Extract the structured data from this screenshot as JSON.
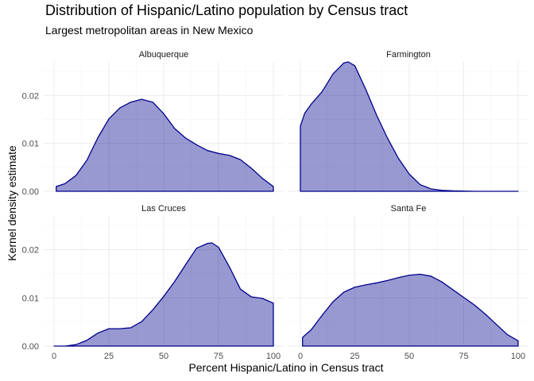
{
  "title": "Distribution of Hispanic/Latino population by Census tract",
  "subtitle": "Largest metropolitan areas in New Mexico",
  "chart_data": {
    "type": "area",
    "chart_kind": "faceted kernel density",
    "title": "Distribution of Hispanic/Latino population by Census tract",
    "subtitle": "Largest metropolitan areas in New Mexico",
    "xlabel": "Percent Hispanic/Latino in Census tract",
    "ylabel": "Kernel density estimate",
    "xlim": [
      0,
      100
    ],
    "ylim": [
      0,
      0.027
    ],
    "x_ticks": [
      0,
      25,
      50,
      75,
      100
    ],
    "x_tick_labels": [
      "0",
      "25",
      "50",
      "75",
      "100"
    ],
    "y_ticks": [
      0,
      0.01,
      0.02
    ],
    "y_tick_labels": [
      "0.00",
      "0.01",
      "0.02"
    ],
    "grid": true,
    "fill_color": "#00008b",
    "fill_alpha": 0.4,
    "line_color": "#00008b",
    "facets": [
      {
        "name": "Albuquerque",
        "x": [
          1,
          5,
          10,
          15,
          20,
          25,
          30,
          35,
          40,
          45,
          50,
          55,
          60,
          65,
          70,
          75,
          80,
          85,
          90,
          95,
          100
        ],
        "y": [
          0.001,
          0.0016,
          0.0033,
          0.0065,
          0.0112,
          0.0151,
          0.0174,
          0.0186,
          0.0192,
          0.0186,
          0.0162,
          0.0131,
          0.0111,
          0.0097,
          0.0085,
          0.0079,
          0.0075,
          0.0066,
          0.0048,
          0.0027,
          0.001
        ]
      },
      {
        "name": "Farmington",
        "x": [
          0,
          2,
          5,
          10,
          15,
          20,
          22,
          25,
          30,
          35,
          40,
          45,
          50,
          55,
          60,
          65,
          70,
          80,
          90,
          100
        ],
        "y": [
          0.0136,
          0.0163,
          0.0182,
          0.0208,
          0.0245,
          0.0268,
          0.027,
          0.0262,
          0.0213,
          0.0159,
          0.0111,
          0.0069,
          0.0036,
          0.0014,
          0.0005,
          0.0002,
          0.0001,
          0.0,
          0.0,
          0.0
        ]
      },
      {
        "name": "Las Cruces",
        "x": [
          0,
          5,
          10,
          15,
          20,
          25,
          30,
          35,
          40,
          45,
          50,
          55,
          60,
          65,
          70,
          72,
          75,
          80,
          85,
          90,
          95,
          100
        ],
        "y": [
          0.0,
          0.0,
          0.0003,
          0.0012,
          0.0027,
          0.0036,
          0.0036,
          0.0038,
          0.0051,
          0.0075,
          0.0103,
          0.0134,
          0.0169,
          0.0203,
          0.0213,
          0.0214,
          0.0205,
          0.0164,
          0.0118,
          0.0102,
          0.0099,
          0.0089
        ]
      },
      {
        "name": "Santa Fe",
        "x": [
          1,
          5,
          10,
          15,
          20,
          25,
          30,
          35,
          40,
          45,
          50,
          55,
          60,
          65,
          70,
          75,
          80,
          85,
          90,
          95,
          100
        ],
        "y": [
          0.0018,
          0.0034,
          0.0064,
          0.0092,
          0.0112,
          0.0122,
          0.0127,
          0.0131,
          0.0136,
          0.0142,
          0.0147,
          0.0149,
          0.0145,
          0.0133,
          0.0117,
          0.0101,
          0.0085,
          0.0066,
          0.0045,
          0.0024,
          0.0011
        ]
      }
    ]
  }
}
